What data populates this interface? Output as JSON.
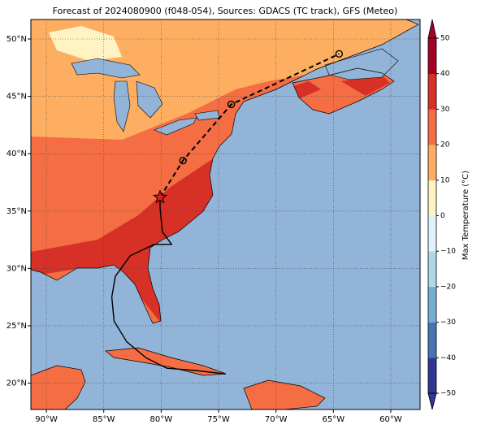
{
  "chart_data": {
    "type": "map",
    "title": "Forecast of 2024080900 (f048-054), Sources: GDACS (TC track), GFS (Meteo)",
    "xlim": [
      -91.35,
      -57.45
    ],
    "ylim": [
      17.7,
      51.7
    ],
    "xticks": [
      {
        "value": -90,
        "label": "90°W"
      },
      {
        "value": -85,
        "label": "85°W"
      },
      {
        "value": -80,
        "label": "80°W"
      },
      {
        "value": -75,
        "label": "75°W"
      },
      {
        "value": -70,
        "label": "70°W"
      },
      {
        "value": -65,
        "label": "65°W"
      },
      {
        "value": -60,
        "label": "60°W"
      }
    ],
    "yticks": [
      {
        "value": 20,
        "label": "20°N"
      },
      {
        "value": 25,
        "label": "25°N"
      },
      {
        "value": 30,
        "label": "30°N"
      },
      {
        "value": 35,
        "label": "35°N"
      },
      {
        "value": 40,
        "label": "40°N"
      },
      {
        "value": 45,
        "label": "45°N"
      },
      {
        "value": 50,
        "label": "50°N"
      }
    ],
    "grid": true,
    "colorbar": {
      "label": "Max Temperature (°C)",
      "clim": [
        -50,
        50
      ],
      "colors": [
        "#313695",
        "#4575b4",
        "#74add1",
        "#abd9e9",
        "#e0f3f8",
        "#fff3c4",
        "#fdae61",
        "#f46d43",
        "#d73027",
        "#a50026"
      ],
      "ticks": [
        {
          "value": -50,
          "label": "−50"
        },
        {
          "value": -40,
          "label": "−40"
        },
        {
          "value": -30,
          "label": "−30"
        },
        {
          "value": -20,
          "label": "−20"
        },
        {
          "value": -10,
          "label": "−10"
        },
        0,
        10,
        20,
        30,
        40,
        50
      ]
    },
    "track": {
      "past": {
        "lon": [
          -74.4,
          -77.0,
          -79.5,
          -81.3,
          -83.0,
          -84.1,
          -84.3,
          -84.0,
          -82.7,
          -80.6,
          -79.1,
          -79.9,
          -80.1,
          -80.1
        ],
        "lat": [
          20.8,
          21.1,
          21.3,
          22.2,
          23.6,
          25.4,
          27.5,
          29.3,
          31.1,
          32.1,
          32.1,
          33.2,
          35.3,
          36.2
        ]
      },
      "forecast": {
        "lon": [
          -80.1,
          -78.1,
          -73.9,
          -64.5
        ],
        "lat": [
          36.2,
          39.4,
          44.3,
          48.7
        ]
      }
    }
  }
}
